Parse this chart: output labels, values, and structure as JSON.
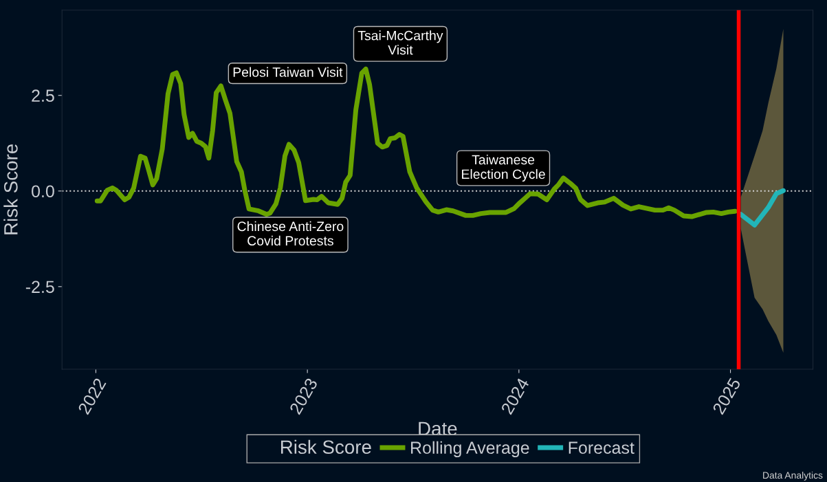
{
  "chart_data": {
    "type": "line",
    "xlabel": "Date",
    "ylabel": "Risk Score",
    "legend_title": "Risk Score",
    "legend": "bottom",
    "grid": false,
    "marker": "none",
    "line_style": "solid",
    "xlim": [
      2021.84,
      2025.39
    ],
    "ylim": [
      -4.66,
      4.73
    ],
    "xticks": [
      2022,
      2023,
      2024,
      2025
    ],
    "yticks": [
      {
        "value": -2.5,
        "label": "-2.5"
      },
      {
        "value": 0,
        "label": "0.0"
      },
      {
        "value": 2.5,
        "label": "2.5"
      }
    ],
    "series": [
      {
        "name": "Rolling Average",
        "color": "#69a300",
        "x": [
          2022.006,
          2022.022,
          2022.054,
          2022.078,
          2022.097,
          2022.136,
          2022.157,
          2022.179,
          2022.211,
          2022.233,
          2022.249,
          2022.269,
          2022.287,
          2022.314,
          2022.341,
          2022.363,
          2022.381,
          2022.401,
          2022.417,
          2022.439,
          2022.457,
          2022.477,
          2022.498,
          2022.518,
          2022.534,
          2022.552,
          2022.569,
          2022.591,
          2022.612,
          2022.634,
          2022.666,
          2022.688,
          2022.704,
          2022.724,
          2022.769,
          2022.807,
          2022.823,
          2022.851,
          2022.872,
          2022.894,
          2022.913,
          2022.937,
          2022.959,
          2022.991,
          2023.029,
          2023.046,
          2023.067,
          2023.099,
          2023.143,
          2023.164,
          2023.181,
          2023.202,
          2023.229,
          2023.257,
          2023.276,
          2023.294,
          2023.332,
          2023.354,
          2023.376,
          2023.392,
          2023.414,
          2023.435,
          2023.452,
          2023.484,
          2023.517,
          2023.56,
          2023.592,
          2023.619,
          2023.657,
          2023.689,
          2023.749,
          2023.782,
          2023.82,
          2023.863,
          2023.939,
          2023.977,
          2024.004,
          2024.053,
          2024.091,
          2024.132,
          2024.167,
          2024.188,
          2024.21,
          2024.243,
          2024.269,
          2024.291,
          2024.324,
          2024.372,
          2024.405,
          2024.448,
          2024.492,
          2024.529,
          2024.567,
          2024.643,
          2024.681,
          2024.708,
          2024.735,
          2024.779,
          2024.817,
          2024.887,
          2024.919,
          2024.957,
          2024.99,
          2025.022
        ],
        "values": [
          -0.26,
          -0.26,
          0.02,
          0.08,
          0.02,
          -0.23,
          -0.16,
          0.08,
          0.91,
          0.86,
          0.56,
          0.16,
          0.32,
          1.1,
          2.54,
          3.05,
          3.09,
          2.81,
          2.0,
          1.4,
          1.51,
          1.3,
          1.25,
          1.16,
          0.86,
          1.58,
          2.57,
          2.75,
          2.39,
          2.03,
          0.77,
          0.5,
          0.02,
          -0.47,
          -0.52,
          -0.61,
          -0.58,
          -0.34,
          0.08,
          0.92,
          1.22,
          1.07,
          0.74,
          -0.25,
          -0.22,
          -0.23,
          -0.14,
          -0.31,
          -0.35,
          -0.19,
          0.23,
          0.41,
          2.12,
          3.08,
          3.19,
          2.78,
          1.25,
          1.15,
          1.19,
          1.37,
          1.39,
          1.48,
          1.43,
          0.5,
          0.08,
          -0.28,
          -0.5,
          -0.55,
          -0.49,
          -0.52,
          -0.64,
          -0.64,
          -0.59,
          -0.56,
          -0.56,
          -0.46,
          -0.31,
          -0.07,
          -0.08,
          -0.23,
          0.05,
          0.17,
          0.34,
          0.2,
          0.07,
          -0.22,
          -0.38,
          -0.31,
          -0.29,
          -0.19,
          -0.37,
          -0.47,
          -0.41,
          -0.5,
          -0.5,
          -0.44,
          -0.5,
          -0.65,
          -0.67,
          -0.56,
          -0.55,
          -0.59,
          -0.55,
          -0.53
        ]
      },
      {
        "name": "Forecast",
        "color": "#22b5b8",
        "x": [
          2025.049,
          2025.114,
          2025.152,
          2025.179,
          2025.217,
          2025.25
        ],
        "values": [
          -0.61,
          -0.89,
          -0.62,
          -0.43,
          -0.07,
          0.01
        ],
        "upper": [
          -0.16,
          0.92,
          1.58,
          2.3,
          3.2,
          4.24
        ],
        "lower": [
          -0.99,
          -2.79,
          -3.09,
          -3.4,
          -3.76,
          -4.23
        ]
      }
    ],
    "ref_lines": [
      {
        "axis": "y",
        "value": 0,
        "color": "#d0d0d0",
        "line_style": "dotted"
      },
      {
        "axis": "x",
        "value": 2025.039,
        "color": "#ff0000",
        "line_style": "solid"
      }
    ],
    "annotations": [
      "Pelosi Taiwan Visit",
      "Chinese Anti-Zero\nCovid Protests",
      "Tsai-McCarthy\nVisit",
      "Taiwanese\nElection Cycle",
      "Data Analytics"
    ]
  }
}
